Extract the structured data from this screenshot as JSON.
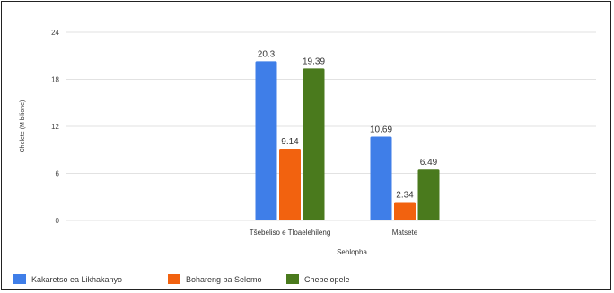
{
  "chart_data": {
    "type": "bar",
    "categories": [
      "Tšebeliso e Tloaelehileng",
      "Matsete"
    ],
    "series": [
      {
        "name": "Kakaretso ea Likhakanyo",
        "values": [
          20.3,
          10.69
        ],
        "color": "#3f7ee8"
      },
      {
        "name": "Bohareng ba Selemo",
        "values": [
          9.14,
          2.34
        ],
        "color": "#f2620f"
      },
      {
        "name": "Chebelopele",
        "values": [
          19.39,
          6.49
        ],
        "color": "#4a7a1d"
      }
    ],
    "data_labels": [
      [
        "20.3",
        "10.69"
      ],
      [
        "9.14",
        "2.34"
      ],
      [
        "19.39",
        "6.49"
      ]
    ],
    "xlabel": "Sehlopha",
    "ylabel": "Chelete (M bilione)",
    "ylim": [
      0,
      24
    ],
    "yticks": [
      "0",
      "6",
      "12",
      "18",
      "24"
    ],
    "grid": true,
    "legend_position": "bottom-left"
  }
}
